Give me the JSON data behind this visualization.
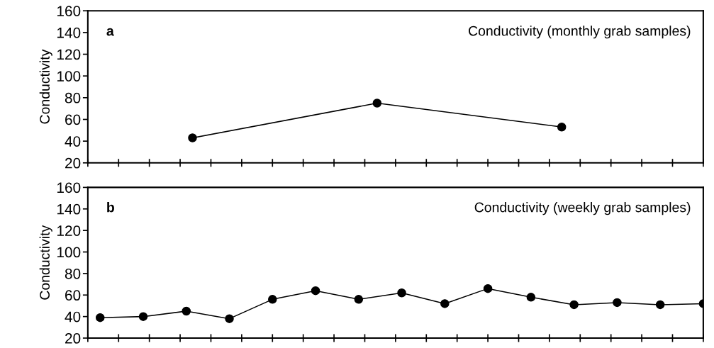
{
  "chart_data": [
    {
      "type": "line",
      "title": "Conductivity (monthly grab samples)",
      "ylabel": "Conductivity",
      "annotations": [
        "a"
      ],
      "categories": [
        null,
        null,
        null
      ],
      "ylim": [
        20,
        160
      ],
      "yticks": [
        20,
        40,
        60,
        80,
        100,
        120,
        140,
        160
      ],
      "tick_labels": "y",
      "marker": "circle",
      "series": [
        {
          "color": "#000000",
          "values": [
            43,
            75,
            53
          ]
        }
      ]
    },
    {
      "type": "line",
      "title": "Conductivity (weekly grab samples)",
      "ylabel": "Conductivity",
      "annotations": [
        "b"
      ],
      "categories": [
        null,
        null,
        null,
        null,
        null,
        null,
        null,
        null,
        null,
        null,
        null,
        null,
        null,
        null,
        null
      ],
      "ylim": [
        20,
        160
      ],
      "yticks": [
        20,
        40,
        60,
        80,
        100,
        120,
        140,
        160
      ],
      "tick_labels": "y",
      "marker": "circle",
      "series": [
        {
          "color": "#000000",
          "values": [
            39,
            40,
            45,
            38,
            56,
            64,
            56,
            62,
            52,
            66,
            58,
            51,
            53,
            51,
            52
          ]
        }
      ]
    }
  ]
}
